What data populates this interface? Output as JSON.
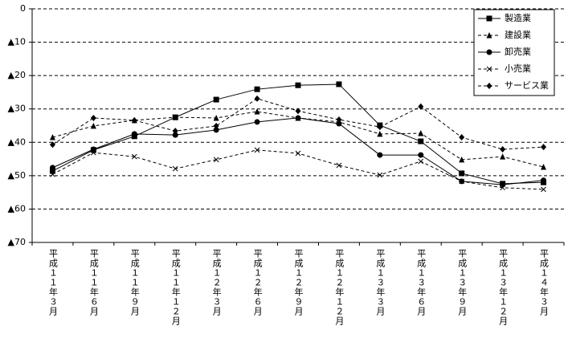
{
  "chart_data": {
    "type": "line",
    "categories": [
      "平成１１年３月",
      "平成１１年６月",
      "平成１１年９月",
      "平成１１年１２月",
      "平成１２年３月",
      "平成１２年６月",
      "平成１２年９月",
      "平成１２年１２月",
      "平成１３年３月",
      "平成１３年６月",
      "平成１３年９月",
      "平成１３年１２月",
      "平成１４年３月"
    ],
    "ylim": [
      -70,
      0
    ],
    "yticks": [
      {
        "value": 0,
        "label": "0"
      },
      {
        "value": -10,
        "label": "▲10"
      },
      {
        "value": -20,
        "label": "▲20"
      },
      {
        "value": -30,
        "label": "▲30"
      },
      {
        "value": -40,
        "label": "▲40"
      },
      {
        "value": -50,
        "label": "▲50"
      },
      {
        "value": -60,
        "label": "▲60"
      },
      {
        "value": -70,
        "label": "▲70"
      }
    ],
    "grid": true,
    "legend": "upper right",
    "series": [
      {
        "name": "製造業",
        "color": "#000000",
        "line_style": "solid",
        "marker": "square",
        "values": [
          -48.6,
          -42.3,
          -38.2,
          -32.5,
          -27.2,
          -24.1,
          -22.9,
          -22.6,
          -34.9,
          -39.7,
          -49.3,
          -52.4,
          -52.0
        ]
      },
      {
        "name": "建設業",
        "color": "#000000",
        "line_style": "dashed",
        "marker": "triangle",
        "values": [
          -38.5,
          -35.1,
          -33.4,
          -32.5,
          -32.7,
          -30.8,
          -32.7,
          -33.9,
          -37.5,
          -37.3,
          -45.2,
          -44.3,
          -47.4
        ]
      },
      {
        "name": "卸売業",
        "color": "#000000",
        "line_style": "solid",
        "marker": "circle",
        "values": [
          -47.6,
          -42.1,
          -37.5,
          -37.8,
          -36.3,
          -33.9,
          -32.7,
          -34.4,
          -43.8,
          -43.8,
          -51.7,
          -52.7,
          -51.4
        ]
      },
      {
        "name": "小売業",
        "color": "#000000",
        "line_style": "dashed",
        "marker": "x",
        "values": [
          -49.6,
          -43.1,
          -44.3,
          -47.9,
          -45.2,
          -42.3,
          -43.3,
          -46.9,
          -49.8,
          -45.7,
          -51.7,
          -53.6,
          -54.1
        ]
      },
      {
        "name": "サービス業",
        "color": "#000000",
        "line_style": "dashed",
        "marker": "diamond",
        "values": [
          -40.7,
          -32.7,
          -33.4,
          -36.6,
          -35.1,
          -26.9,
          -30.6,
          -33.2,
          -35.4,
          -29.3,
          -38.5,
          -42.1,
          -41.4
        ]
      }
    ]
  }
}
